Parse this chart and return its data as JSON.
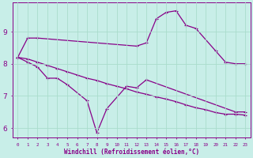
{
  "xlabel": "Windchill (Refroidissement éolien,°C)",
  "background_color": "#c8eee8",
  "grid_color": "#aaddcc",
  "line_color": "#880088",
  "ylim": [
    5.7,
    9.9
  ],
  "xlim": [
    -0.5,
    23.5
  ],
  "y_ticks": [
    6,
    7,
    8,
    9
  ],
  "x_ticks": [
    0,
    1,
    2,
    3,
    4,
    5,
    6,
    7,
    8,
    9,
    10,
    11,
    12,
    13,
    14,
    15,
    16,
    17,
    18,
    19,
    20,
    21,
    22,
    23
  ],
  "line1_x": [
    0,
    1,
    2,
    12,
    13,
    14,
    15,
    16,
    17,
    18,
    20,
    21,
    22,
    23
  ],
  "line1_y": [
    8.2,
    8.8,
    8.8,
    8.55,
    8.65,
    9.4,
    9.6,
    9.65,
    9.2,
    9.1,
    8.4,
    8.05,
    8.0,
    8.0
  ],
  "line2_x": [
    0,
    1,
    2,
    3,
    4,
    5,
    7,
    8,
    9,
    11,
    12,
    13,
    22,
    23
  ],
  "line2_y": [
    8.2,
    8.05,
    7.9,
    7.55,
    7.55,
    7.35,
    6.85,
    5.85,
    6.6,
    7.3,
    7.25,
    7.5,
    6.5,
    6.5
  ],
  "line3_x": [
    0,
    1,
    2,
    3,
    4,
    5,
    6,
    7,
    8,
    9,
    10,
    11,
    12,
    13,
    14,
    15,
    16,
    17,
    18,
    19,
    20,
    21,
    22,
    23
  ],
  "line3_y": [
    8.2,
    8.15,
    8.05,
    7.95,
    7.85,
    7.75,
    7.65,
    7.55,
    7.48,
    7.38,
    7.3,
    7.22,
    7.12,
    7.05,
    6.97,
    6.9,
    6.82,
    6.72,
    6.63,
    6.57,
    6.48,
    6.43,
    6.43,
    6.4
  ]
}
